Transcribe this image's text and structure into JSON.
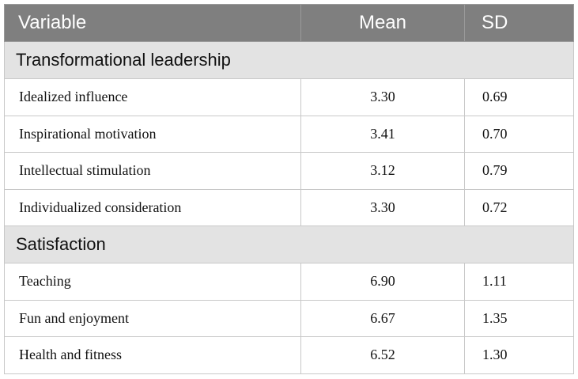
{
  "header": {
    "variable": "Variable",
    "mean": "Mean",
    "sd": "SD"
  },
  "groups": [
    {
      "label": "Transformational leadership",
      "rows": [
        {
          "variable": "Idealized influence",
          "mean": "3.30",
          "sd": "0.69"
        },
        {
          "variable": "Inspirational motivation",
          "mean": "3.41",
          "sd": "0.70"
        },
        {
          "variable": "Intellectual stimulation",
          "mean": "3.12",
          "sd": "0.79"
        },
        {
          "variable": "Individualized consideration",
          "mean": "3.30",
          "sd": "0.72"
        }
      ]
    },
    {
      "label": "Satisfaction",
      "rows": [
        {
          "variable": "Teaching",
          "mean": "6.90",
          "sd": "1.11"
        },
        {
          "variable": "Fun and enjoyment",
          "mean": "6.67",
          "sd": "1.35"
        },
        {
          "variable": "Health and fitness",
          "mean": "6.52",
          "sd": "1.30"
        }
      ]
    }
  ]
}
